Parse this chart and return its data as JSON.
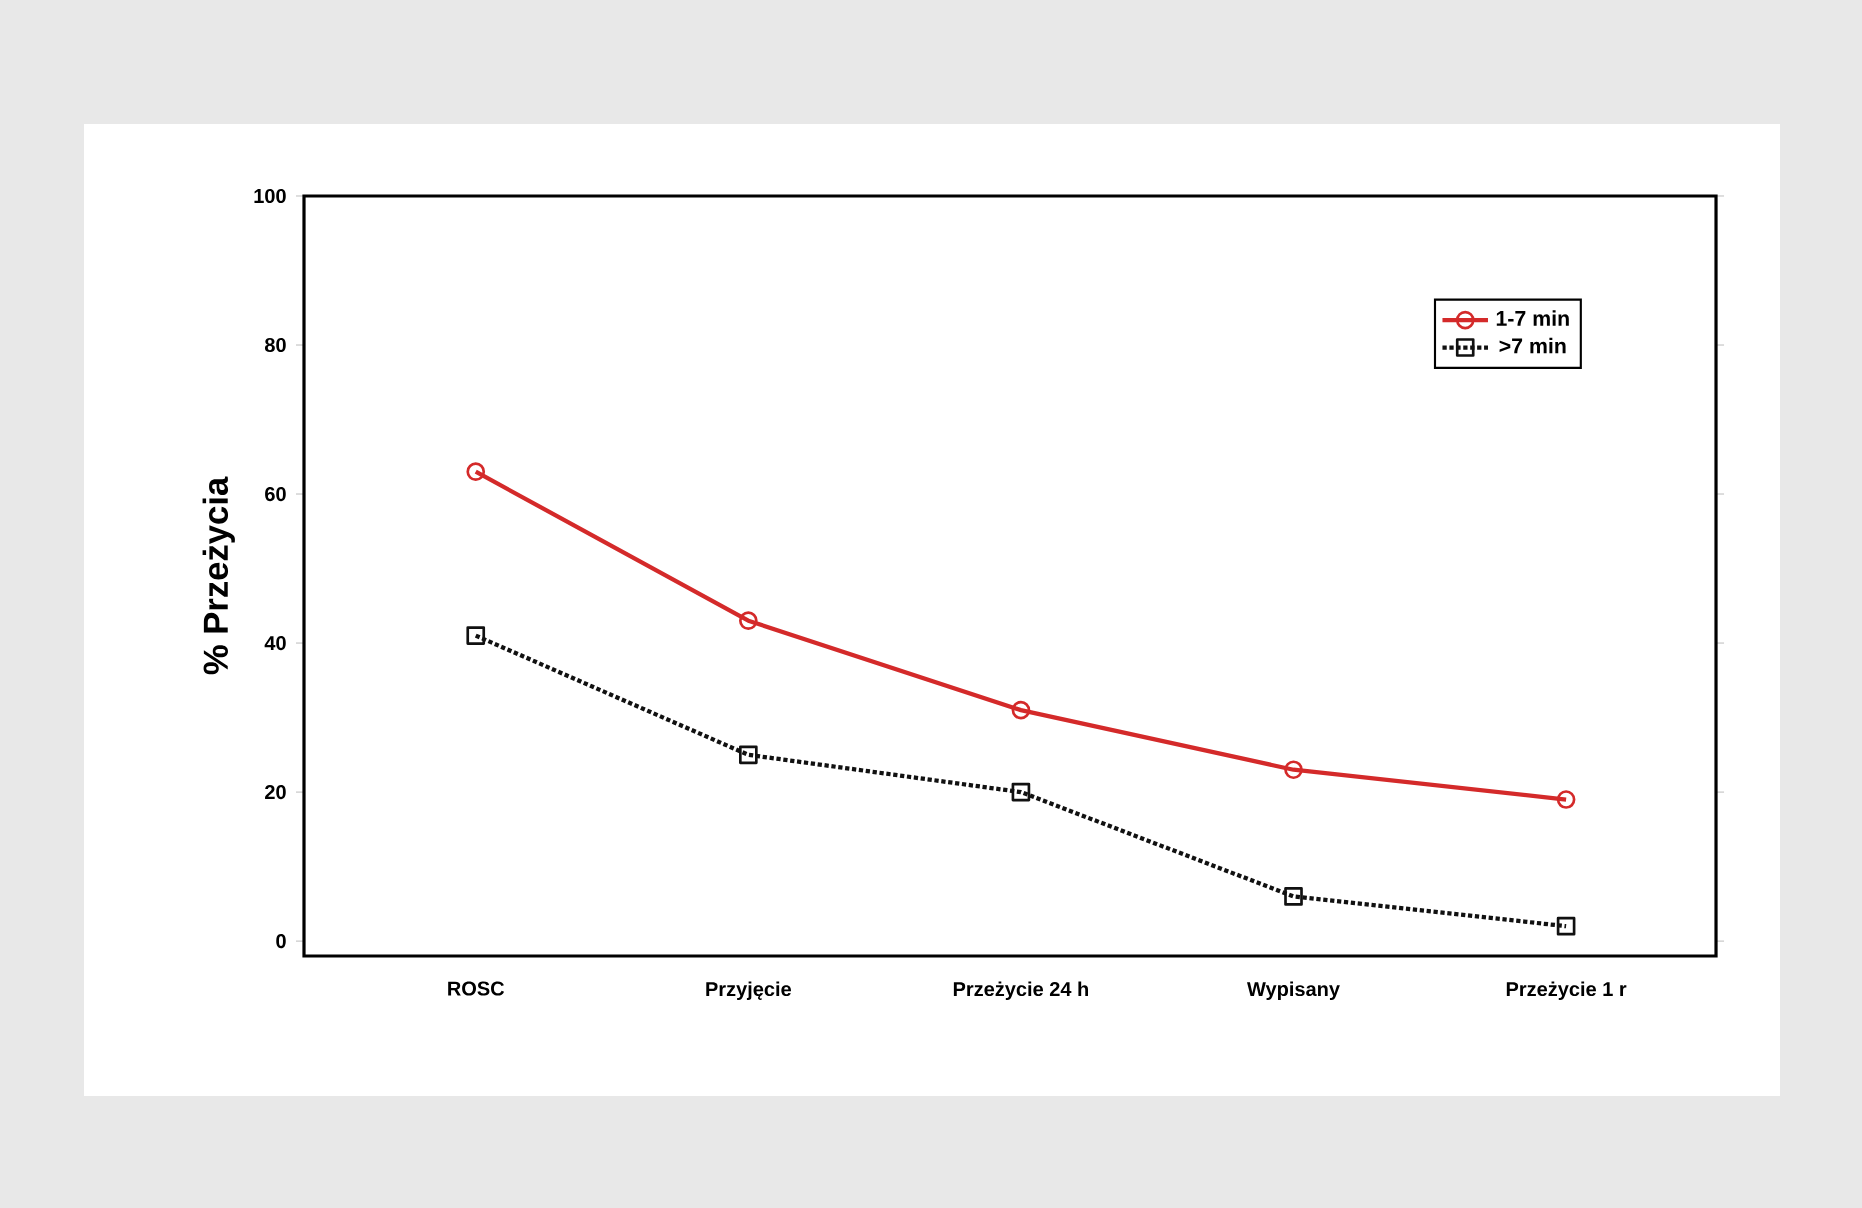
{
  "chart_data": {
    "type": "line",
    "ylabel": "% Przeżycia",
    "categories": [
      "ROSC",
      "Przyjęcie",
      "Przeżycie 24 h",
      "Wypisany",
      "Przeżycie 1 r"
    ],
    "series": [
      {
        "name": "1-7 min",
        "color": "#d42a2a",
        "values": [
          63,
          43,
          31,
          23,
          19
        ],
        "marker": "circle",
        "line_style": "solid"
      },
      {
        "name": ">7 min",
        "color": "#111111",
        "values": [
          41,
          25,
          20,
          6,
          2
        ],
        "marker": "square",
        "line_style": "dotted"
      }
    ],
    "ylim": [
      -2,
      100
    ],
    "yticks": [
      0,
      20,
      40,
      60,
      80,
      100
    ],
    "grid": false,
    "legend": "top right"
  }
}
